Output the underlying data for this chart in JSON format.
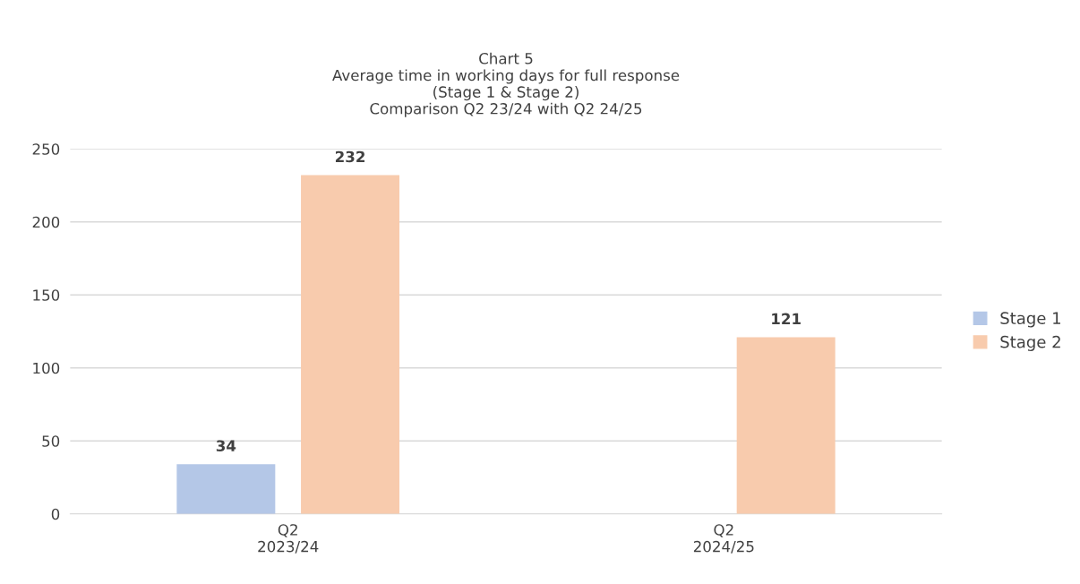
{
  "chart_data": {
    "type": "bar",
    "title": "Chart 5\nAverage time in working days for full response\n(Stage 1 & Stage 2)\nComparison Q2 23/24 with Q2 24/25",
    "categories": [
      "Q2\n2023/24",
      "Q2\n2024/25"
    ],
    "series": [
      {
        "name": "Stage 1",
        "color": "#b4c7e7",
        "values": [
          34,
          null
        ]
      },
      {
        "name": "Stage 2",
        "color": "#f8cbad",
        "values": [
          232,
          121
        ]
      }
    ],
    "ylim": [
      0,
      250
    ],
    "yticks": [
      0,
      50,
      100,
      150,
      200,
      250
    ],
    "grid": "y",
    "legend": "right",
    "data_labels": true
  }
}
